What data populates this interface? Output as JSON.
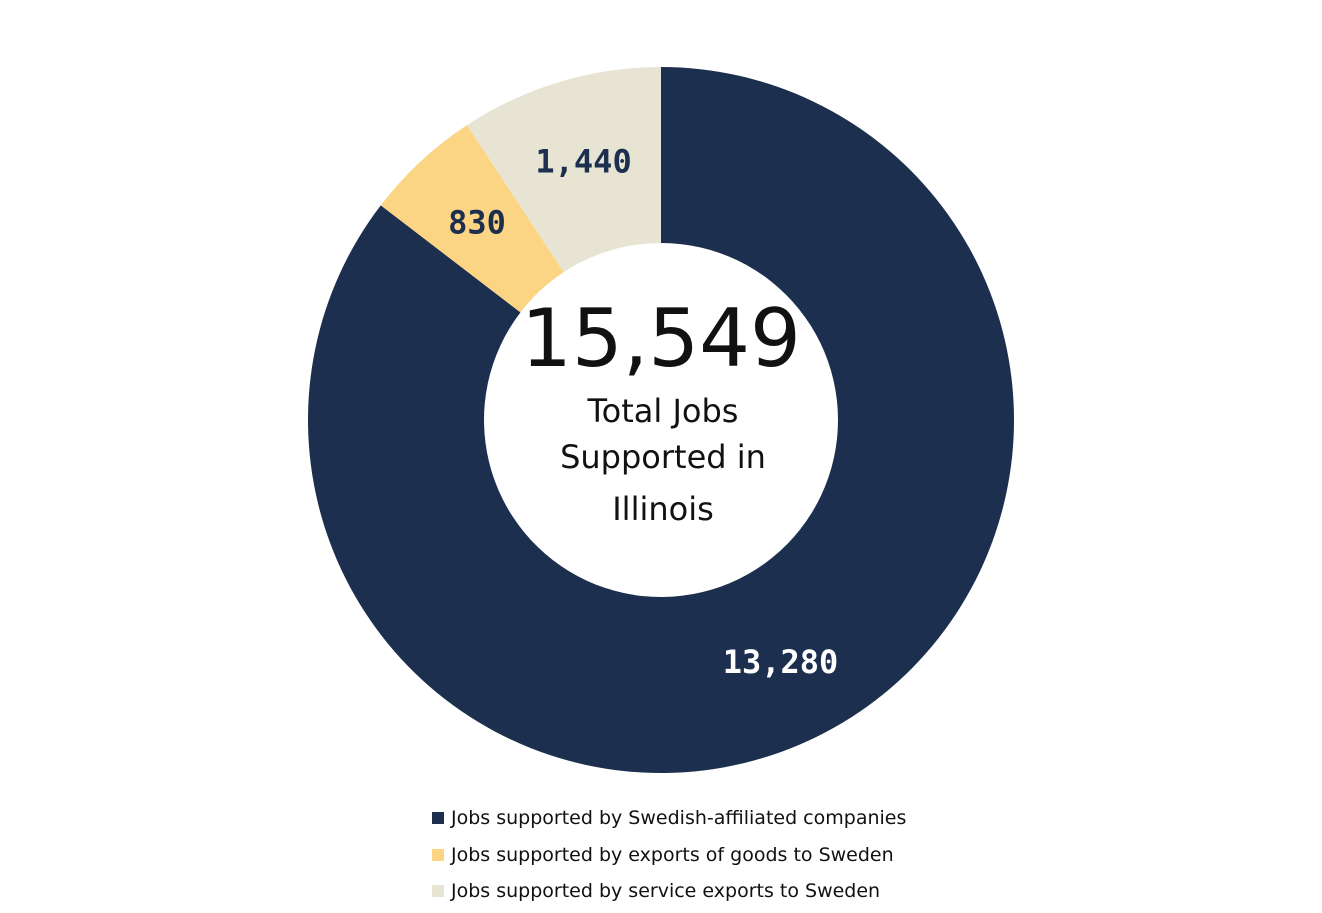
{
  "chart_data": {
    "type": "pie",
    "variant": "donut",
    "title": "",
    "center": {
      "total": "15,549",
      "caption_lines": [
        "Total Jobs",
        "Supported in",
        "Illinois"
      ]
    },
    "start_angle": "12 o'clock",
    "direction": "clockwise",
    "slices": [
      {
        "label": "Jobs supported by Swedish-affiliated companies",
        "value": 13280,
        "display": "13,280",
        "color": "#1c2f4f",
        "label_color": "#ffffff"
      },
      {
        "label": "Jobs supported by exports of goods to Sweden",
        "value": 830,
        "display": "830",
        "color": "#fcd584",
        "label_color": "#1c2f4f"
      },
      {
        "label": "Jobs supported by service exports to Sweden",
        "value": 1440,
        "display": "1,440",
        "color": "#e8e4d3",
        "label_color": "#1c2f4f"
      }
    ],
    "legend_position": "bottom"
  }
}
